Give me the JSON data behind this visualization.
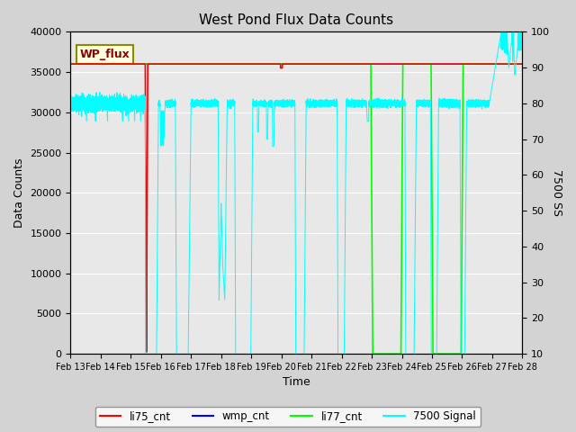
{
  "title": "West Pond Flux Data Counts",
  "xlabel": "Time",
  "ylabel_left": "Data Counts",
  "ylabel_right": "7500 SS",
  "annotation_text": "WP_flux",
  "xlim": [
    13,
    28
  ],
  "ylim_left": [
    0,
    40000
  ],
  "ylim_right": [
    10,
    100
  ],
  "background_color": "#d3d3d3",
  "plot_bg_color": "#e8e8e8",
  "tick_labels": [
    "Feb 13",
    "Feb 14",
    "Feb 15",
    "Feb 16",
    "Feb 17",
    "Feb 18",
    "Feb 19",
    "Feb 20",
    "Feb 21",
    "Feb 22",
    "Feb 23",
    "Feb 24",
    "Feb 25",
    "Feb 26",
    "Feb 27",
    "Feb 28"
  ]
}
